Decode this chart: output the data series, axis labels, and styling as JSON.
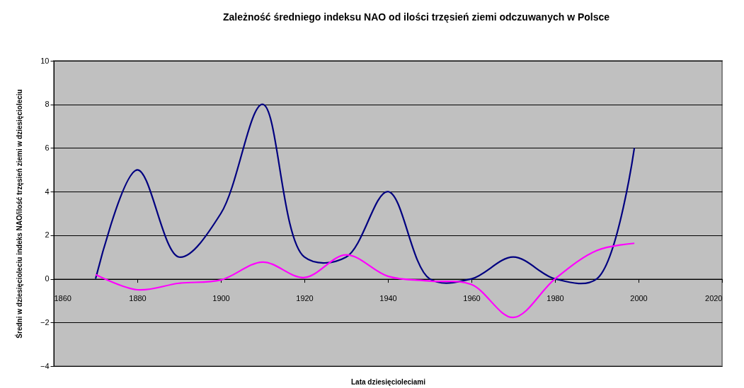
{
  "chart_data": {
    "type": "line",
    "title": "Zależność średniego indeksu NAO od ilości trzęsień ziemi odczuwanych w Polsce",
    "xlabel": "Lata dziesięcioleciami",
    "ylabel": "Średni w dziesięcioleciu indeks NAO/ilość trzęsień ziemi w dziesięcioleciu",
    "x": [
      1870,
      1880,
      1890,
      1900,
      1910,
      1920,
      1930,
      1940,
      1950,
      1960,
      1970,
      1980,
      1990,
      1999
    ],
    "series": [
      {
        "color": "#000080",
        "values": [
          0,
          5,
          1,
          3,
          8,
          1,
          1,
          4,
          0,
          0,
          1,
          0,
          0,
          6
        ]
      },
      {
        "color": "#ff00ff",
        "values": [
          0.2,
          -0.5,
          -0.2,
          -0.05,
          0.77,
          0.06,
          1.1,
          0.12,
          -0.1,
          -0.26,
          -1.77,
          0,
          1.3,
          1.63
        ]
      }
    ],
    "xlim": [
      1860,
      2020
    ],
    "xticks": [
      1860,
      1880,
      1900,
      1920,
      1940,
      1960,
      1980,
      2000,
      2020
    ],
    "ylim": [
      -4,
      10
    ],
    "yticks": [
      -4,
      -2,
      0,
      2,
      4,
      6,
      8,
      10
    ],
    "grid": "y",
    "legend": false,
    "marker": "none",
    "line_style": "solid"
  }
}
